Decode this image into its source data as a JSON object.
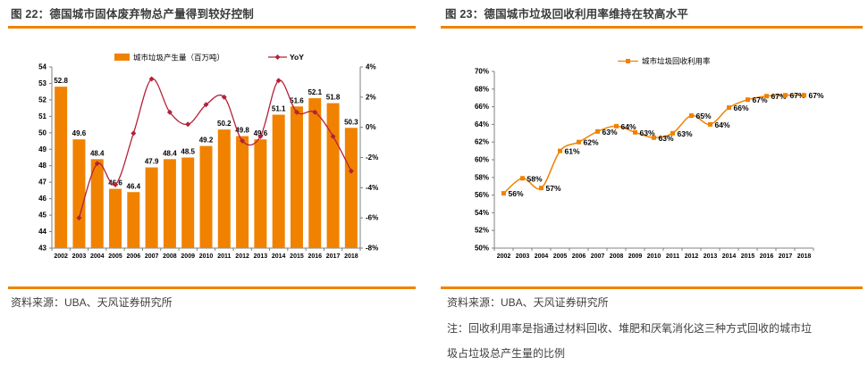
{
  "colors": {
    "orange": "#F08200",
    "crimson": "#B42138",
    "title_text": "#3b3b3b",
    "axis_line": "#808080",
    "label_text": "#000000"
  },
  "panels": {
    "left": {
      "fig_title": "图 22：德国城市固体废弃物总产量得到较好控制",
      "source": "资料来源：UBA、天风证券研究所"
    },
    "right": {
      "fig_title": "图 23：德国城市垃圾回收利用率维持在较高水平",
      "source": "资料来源：UBA、天风证券研究所",
      "note_lines": [
        "注：回收利用率是指通过材料回收、堆肥和厌氧消化这三种方式回收的城市垃",
        "圾占垃圾总产生量的比例"
      ]
    }
  },
  "chart_data": [
    {
      "type": "bar",
      "title": "德国城市固体废弃物总产量得到较好控制",
      "categories": [
        "2002",
        "2003",
        "2004",
        "2005",
        "2006",
        "2007",
        "2008",
        "2009",
        "2010",
        "2011",
        "2012",
        "2013",
        "2014",
        "2015",
        "2016",
        "2017",
        "2018"
      ],
      "series": [
        {
          "name": "城市垃圾产生量（百万吨）",
          "type": "bar",
          "axis": "left",
          "color": "#F08200",
          "values": [
            52.8,
            49.6,
            48.4,
            46.6,
            46.4,
            47.9,
            48.4,
            48.5,
            49.2,
            50.2,
            49.8,
            49.6,
            51.1,
            51.6,
            52.1,
            51.8,
            50.3
          ]
        },
        {
          "name": "YoY",
          "type": "line",
          "axis": "right",
          "color": "#B42138",
          "values": [
            null,
            -6.0,
            -2.4,
            -3.8,
            -0.4,
            3.2,
            1.0,
            0.2,
            1.5,
            2.0,
            -0.9,
            -0.6,
            3.1,
            1.0,
            1.0,
            -0.6,
            -2.9
          ]
        }
      ],
      "left_axis": {
        "min": 43,
        "max": 54,
        "step": 1,
        "suffix": ""
      },
      "right_axis": {
        "min": -8,
        "max": 4,
        "step": 2,
        "suffix": "%"
      },
      "grid": false,
      "legend_position": "top"
    },
    {
      "type": "line",
      "title": "德国城市垃圾回收利用率维持在较高水平",
      "categories": [
        "2002",
        "2003",
        "2004",
        "2005",
        "2006",
        "2007",
        "2008",
        "2009",
        "2010",
        "2011",
        "2012",
        "2013",
        "2014",
        "2015",
        "2016",
        "2017",
        "2018"
      ],
      "series": [
        {
          "name": "城市垃圾回收利用率",
          "color": "#F08200",
          "values": [
            56,
            58,
            57,
            61,
            62,
            63,
            64,
            63,
            63,
            63,
            65,
            64,
            66,
            67,
            67,
            67,
            67
          ],
          "labels": [
            "56%",
            "58%",
            "57%",
            "61%",
            "62%",
            "63%",
            "64%",
            "63%",
            "63%",
            "63%",
            "65%",
            "64%",
            "66%",
            "67%",
            "67%",
            "67%",
            "67%"
          ],
          "point_estimates": [
            56.2,
            57.9,
            56.8,
            61.0,
            62.0,
            63.2,
            63.8,
            63.1,
            62.5,
            63.0,
            65.0,
            64.0,
            65.9,
            66.8,
            67.2,
            67.3,
            67.3
          ]
        }
      ],
      "y_axis": {
        "min": 50,
        "max": 70,
        "step": 2,
        "suffix": "%"
      },
      "grid": false,
      "legend_position": "top"
    }
  ]
}
